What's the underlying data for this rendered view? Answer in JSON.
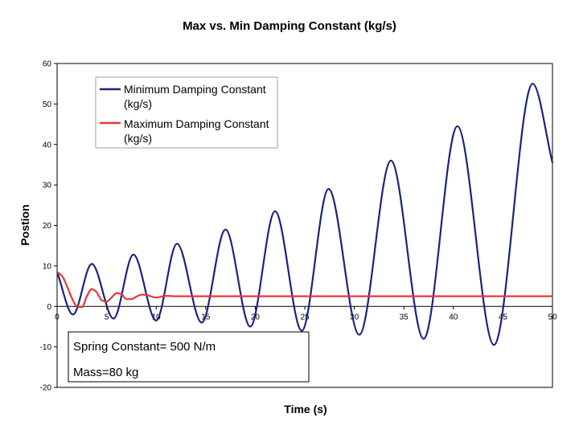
{
  "chart_data": {
    "type": "line",
    "title": "Max vs. Min Damping Constant (kg/s)",
    "xlabel": "Time (s)",
    "ylabel": "Postion",
    "xlim": [
      0,
      50
    ],
    "ylim": [
      -20,
      60
    ],
    "x_ticks": [
      0,
      5,
      10,
      15,
      20,
      25,
      30,
      35,
      40,
      45,
      50
    ],
    "y_ticks": [
      -20,
      -10,
      0,
      10,
      20,
      30,
      40,
      50,
      60
    ],
    "grid": false,
    "legend_position": "top-left",
    "series": [
      {
        "name": "Minimum Damping Constant (kg/s)",
        "name_lines": [
          "Minimum Damping Constant",
          "(kg/s)"
        ],
        "color": "#1a237e",
        "x": [
          0,
          1.6,
          3.5,
          5.7,
          7.7,
          10.0,
          12.1,
          14.6,
          17.0,
          19.5,
          22.0,
          24.7,
          27.4,
          30.5,
          33.7,
          37.0,
          40.4,
          44.1,
          48.0,
          50.0
        ],
        "y": [
          8.5,
          -2,
          10.5,
          -3,
          12.8,
          -3.5,
          15.5,
          -4,
          19,
          -5,
          23.5,
          -6,
          29,
          -7,
          36,
          -8,
          44.5,
          -9.5,
          55,
          35.5
        ]
      },
      {
        "name": "Maximum Damping Constant (kg/s)",
        "name_lines": [
          "Maximum Damping Constant",
          "(kg/s)"
        ],
        "color": "#e53935",
        "x": [
          0,
          0.5,
          1.0,
          1.5,
          2.0,
          2.5,
          3.0,
          3.5,
          4.0,
          4.5,
          5.0,
          5.5,
          6.0,
          6.5,
          7.0,
          7.5,
          8.0,
          8.5,
          9.0,
          10.0,
          11.0,
          12.0,
          13.0,
          15.0,
          20.0,
          30.0,
          40.0,
          50.0
        ],
        "y": [
          8.5,
          7.5,
          5.0,
          2.0,
          0.0,
          -0.2,
          2.5,
          4.3,
          3.5,
          1.5,
          1.2,
          2.2,
          3.3,
          3.0,
          1.8,
          1.8,
          2.4,
          2.9,
          2.8,
          2.2,
          2.6,
          2.5,
          2.5,
          2.5,
          2.5,
          2.5,
          2.5,
          2.5
        ]
      }
    ]
  },
  "annotation": {
    "line1": "Spring Constant= 500 N/m",
    "line2": "Mass=80 kg"
  }
}
